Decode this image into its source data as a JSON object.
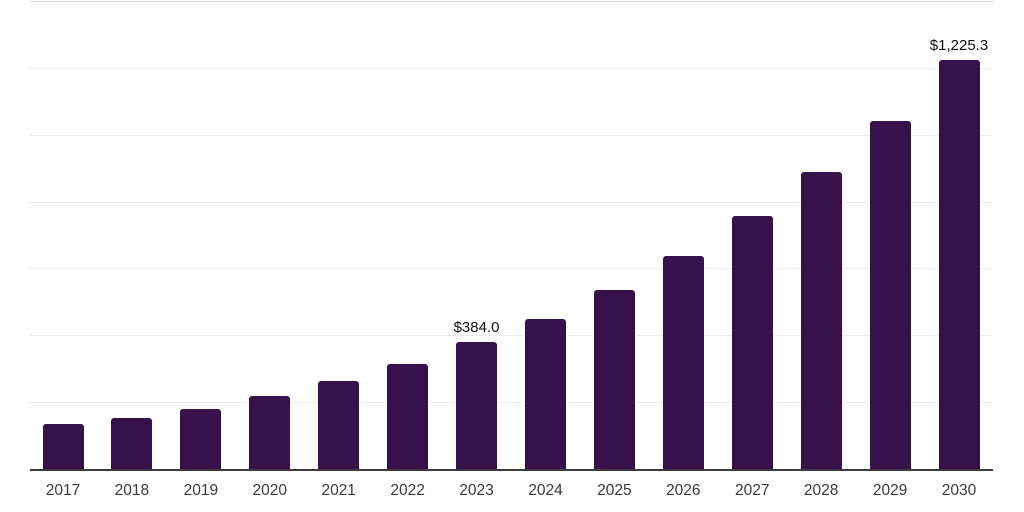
{
  "chart_data": {
    "type": "bar",
    "title": "",
    "xlabel": "",
    "ylabel": "",
    "categories": [
      "2017",
      "2018",
      "2019",
      "2020",
      "2021",
      "2022",
      "2023",
      "2024",
      "2025",
      "2026",
      "2027",
      "2028",
      "2029",
      "2030"
    ],
    "values": [
      137,
      157,
      184,
      220,
      265,
      318,
      384.0,
      453,
      540,
      641,
      761,
      892,
      1044,
      1225.3
    ],
    "data_labels": {
      "2023": "$384.0",
      "2030": "$1,225.3"
    },
    "ylim": [
      0,
      1400
    ],
    "gridline_step": 200,
    "grid": "horizontal-only",
    "y_tick_labels_visible": false,
    "legend_position": "none",
    "bar_color": "#36114A",
    "gridline_color": "#ececec",
    "axis_line_color": "#3d3d3d",
    "label_color": "#111111",
    "tick_label_color": "#3a3a3a",
    "background_color": "#ffffff"
  }
}
